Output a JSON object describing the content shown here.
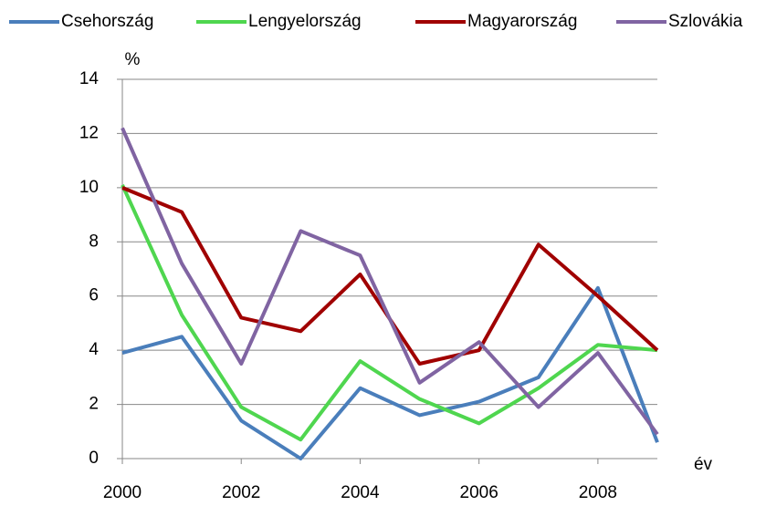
{
  "chart_data": {
    "type": "line",
    "y_label": "%",
    "x_label": "év",
    "x": [
      2000,
      2001,
      2002,
      2003,
      2004,
      2005,
      2006,
      2007,
      2008,
      2009
    ],
    "series": [
      {
        "name": "Csehország",
        "color": "#4a7ebb",
        "values": [
          3.9,
          4.5,
          1.4,
          0,
          2.6,
          1.6,
          2.1,
          3.0,
          6.3,
          0.6
        ]
      },
      {
        "name": "Lengyelország",
        "color": "#4fd64f",
        "values": [
          10.1,
          5.3,
          1.9,
          0.7,
          3.6,
          2.2,
          1.3,
          2.6,
          4.2,
          4.0
        ]
      },
      {
        "name": "Magyarország",
        "color": "#a00000",
        "values": [
          10.0,
          9.1,
          5.2,
          4.7,
          6.8,
          3.5,
          4.0,
          7.9,
          6.0,
          4.0
        ]
      },
      {
        "name": "Szlovákia",
        "color": "#8064a2",
        "values": [
          12.2,
          7.2,
          3.5,
          8.4,
          7.5,
          2.8,
          4.3,
          1.9,
          3.9,
          0.9
        ]
      }
    ],
    "xlim": [
      2000,
      2009
    ],
    "xticks": [
      2000,
      2002,
      2004,
      2006,
      2008
    ],
    "ylim": [
      0,
      14
    ],
    "yticks": [
      0,
      2,
      4,
      6,
      8,
      10,
      12,
      14
    ],
    "grid": true,
    "legend": "top"
  }
}
